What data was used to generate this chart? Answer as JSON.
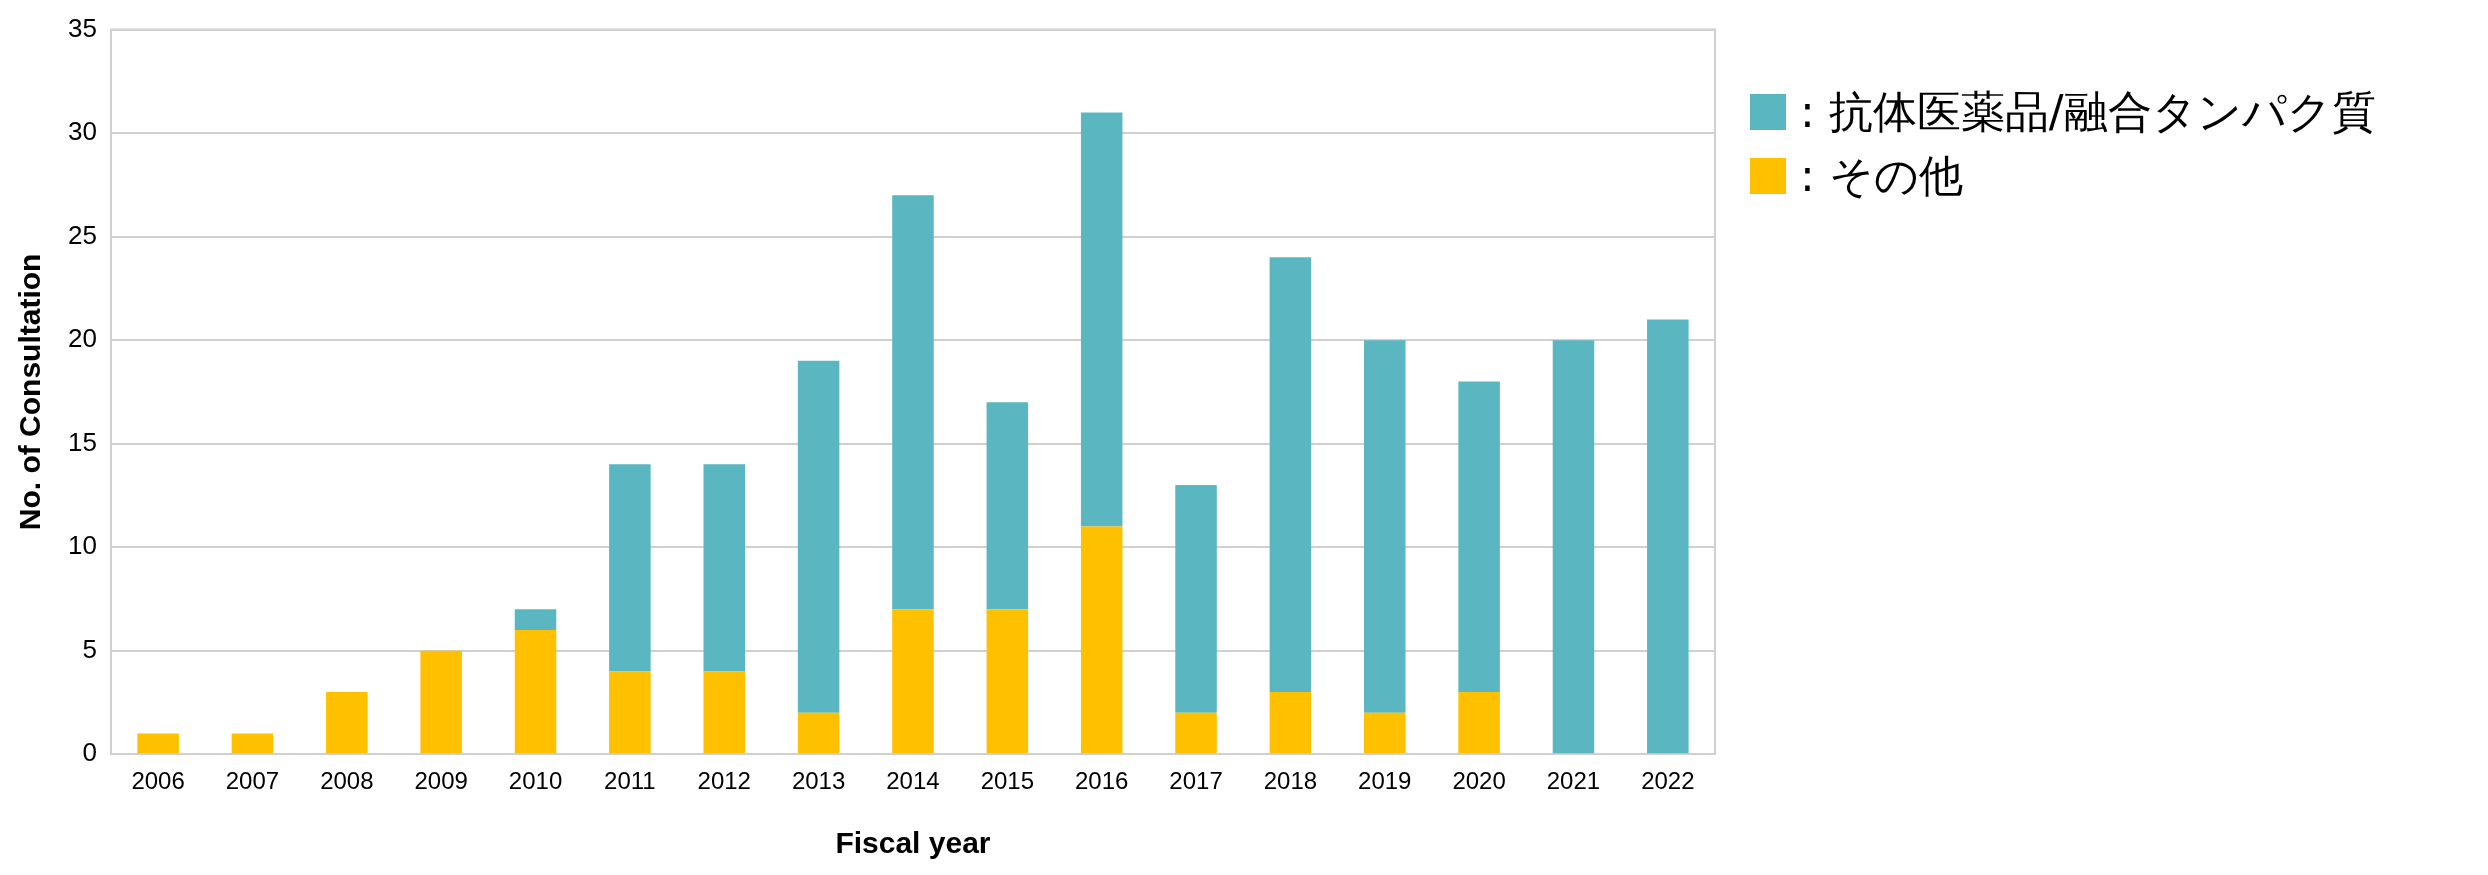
{
  "chart_data": {
    "type": "bar",
    "stacked": true,
    "xlabel": "Fiscal year",
    "ylabel": "No. of Consultation",
    "categories": [
      "2006",
      "2007",
      "2008",
      "2009",
      "2010",
      "2011",
      "2012",
      "2013",
      "2014",
      "2015",
      "2016",
      "2017",
      "2018",
      "2019",
      "2020",
      "2021",
      "2022"
    ],
    "series": [
      {
        "name": ": その他",
        "color": "#ffc000",
        "values": [
          1,
          1,
          3,
          5,
          6,
          4,
          4,
          2,
          7,
          7,
          11,
          2,
          3,
          2,
          3,
          0,
          0
        ]
      },
      {
        "name": ": 抗体医薬品/融合タンパク質",
        "color": "#5ab6c0",
        "values": [
          0,
          0,
          0,
          0,
          1,
          10,
          10,
          17,
          20,
          10,
          20,
          11,
          21,
          18,
          15,
          20,
          21
        ]
      }
    ],
    "ylim": [
      0,
      35
    ],
    "yticks": [
      0,
      5,
      10,
      15,
      20,
      25,
      30,
      35
    ],
    "grid": "y",
    "legend": "top right"
  }
}
